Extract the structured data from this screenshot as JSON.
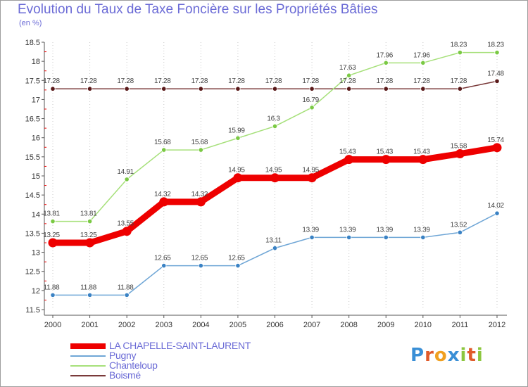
{
  "title": "Evolution du Taux de Taxe Foncière sur les Propriétés Bâties",
  "subtitle": "(en %)",
  "logo": {
    "text": "Proxiti",
    "colors": [
      "#3a8fd6",
      "#e05a2a",
      "#f0a020",
      "#3a8fd6",
      "#8cc63e",
      "#e05a2a",
      "#8cc63e"
    ]
  },
  "chart_data": {
    "type": "line",
    "title": "Evolution du Taux de Taxe Foncière sur les Propriétés Bâties",
    "ylabel": "(en %)",
    "xlabel": "",
    "x": [
      "2000",
      "2001",
      "2002",
      "2003",
      "2004",
      "2005",
      "2006",
      "2007",
      "2008",
      "2009",
      "2010",
      "2011",
      "2012"
    ],
    "ylim": [
      11.5,
      18.5
    ],
    "yticks": [
      "11.5",
      "12",
      "12.5",
      "13",
      "13.5",
      "14",
      "14.5",
      "15",
      "15.5",
      "16",
      "16.5",
      "17",
      "17.5",
      "18",
      "18.5"
    ],
    "grid": "vertical dotted",
    "legend_position": "bottom-left",
    "series": [
      {
        "name": "LA CHAPELLE-SAINT-LAURENT",
        "color": "#ee0000",
        "width": "thick",
        "values": [
          13.25,
          13.25,
          13.55,
          14.32,
          14.32,
          14.95,
          14.95,
          14.95,
          15.43,
          15.43,
          15.43,
          15.58,
          15.74
        ],
        "labels": [
          "13.25",
          "13.25",
          "13.55",
          "14.32",
          "14.32",
          "14.95",
          "14.95",
          "14.95",
          "15.43",
          "15.43",
          "15.43",
          "15.58",
          "15.74"
        ]
      },
      {
        "name": "Pugny",
        "color": "#6fa6d6",
        "point_color": "#3a82c4",
        "width": "thin",
        "values": [
          11.88,
          11.88,
          11.88,
          12.65,
          12.65,
          12.65,
          13.11,
          13.39,
          13.39,
          13.39,
          13.39,
          13.52,
          14.02
        ],
        "labels": [
          "11.88",
          "11.88",
          "11.88",
          "12.65",
          "12.65",
          "12.65",
          "13.11",
          "13.39",
          "13.39",
          "13.39",
          "13.39",
          "13.52",
          "14.02"
        ]
      },
      {
        "name": "Chanteloup",
        "color": "#a6e07a",
        "point_color": "#7ac943",
        "width": "thin",
        "values": [
          13.81,
          13.81,
          14.91,
          15.68,
          15.68,
          15.99,
          16.3,
          16.79,
          17.63,
          17.96,
          17.96,
          18.23,
          18.23
        ],
        "labels": [
          "13.81",
          "13.81",
          "14.91",
          "15.68",
          "15.68",
          "15.99",
          "16.3",
          "16.79",
          "17.63",
          "17.96",
          "17.96",
          "18.23",
          "18.23"
        ]
      },
      {
        "name": "Boismé",
        "color": "#7a3a3a",
        "point_color": "#5a1a1a",
        "width": "thin",
        "values": [
          17.28,
          17.28,
          17.28,
          17.28,
          17.28,
          17.28,
          17.28,
          17.28,
          17.28,
          17.28,
          17.28,
          17.28,
          17.48
        ],
        "labels": [
          "17.28",
          "17.28",
          "17.28",
          "17.28",
          "17.28",
          "17.28",
          "17.28",
          "17.28",
          "17.28",
          "17.28",
          "17.28",
          "17.28",
          "17.48"
        ]
      }
    ]
  }
}
